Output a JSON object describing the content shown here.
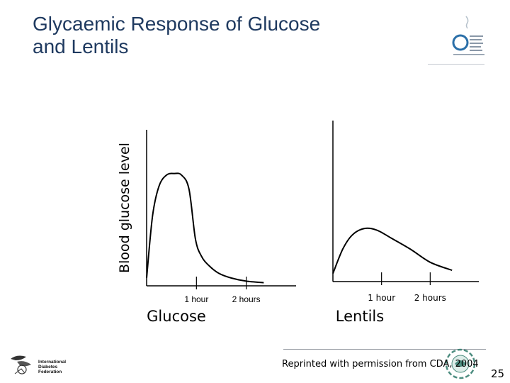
{
  "slide": {
    "title_line1": "Glycaemic Response of Glucose",
    "title_line2": "and Lentils",
    "credit": "Reprinted with permission from CDA, 2004",
    "page_number": "25"
  },
  "logos": {
    "wings_icon": "wings-logo",
    "idf_icon": "international-diabetes-federation-logo",
    "idf_text": [
      "International",
      "Diabetes",
      "Federation"
    ],
    "cda_icon": "canadian-diabetes-association-logo"
  },
  "colors": {
    "title": "#1f3a60",
    "wings_brand": "#2a6fa8",
    "axis": "#000000",
    "curve": "#000000"
  },
  "chart_data": [
    {
      "type": "line",
      "title": "",
      "category_label": "Glucose",
      "ylabel": "Blood glucose level",
      "xticks": [
        {
          "x": 1,
          "label": "1 hour"
        },
        {
          "x": 2,
          "label": "2 hours"
        }
      ],
      "xlim": [
        0,
        3
      ],
      "ylim": [
        0,
        1
      ],
      "series": [
        {
          "x": [
            0,
            0.12,
            0.25,
            0.4,
            0.55,
            0.7,
            0.85,
            0.98,
            1.1,
            1.25,
            1.45,
            1.7,
            2.0,
            2.35
          ],
          "values": [
            0.05,
            0.45,
            0.64,
            0.71,
            0.72,
            0.71,
            0.62,
            0.3,
            0.19,
            0.13,
            0.08,
            0.05,
            0.03,
            0.02
          ]
        }
      ]
    },
    {
      "type": "line",
      "title": "",
      "category_label": "Lentils",
      "ylabel": "",
      "xticks": [
        {
          "x": 1,
          "label": "1 hour"
        },
        {
          "x": 2,
          "label": "2 hours"
        }
      ],
      "xlim": [
        0,
        3
      ],
      "ylim": [
        0,
        1
      ],
      "series": [
        {
          "x": [
            0,
            0.2,
            0.4,
            0.65,
            0.9,
            1.2,
            1.6,
            2.0,
            2.45
          ],
          "values": [
            0.05,
            0.2,
            0.29,
            0.33,
            0.32,
            0.27,
            0.2,
            0.12,
            0.07
          ]
        }
      ]
    }
  ]
}
